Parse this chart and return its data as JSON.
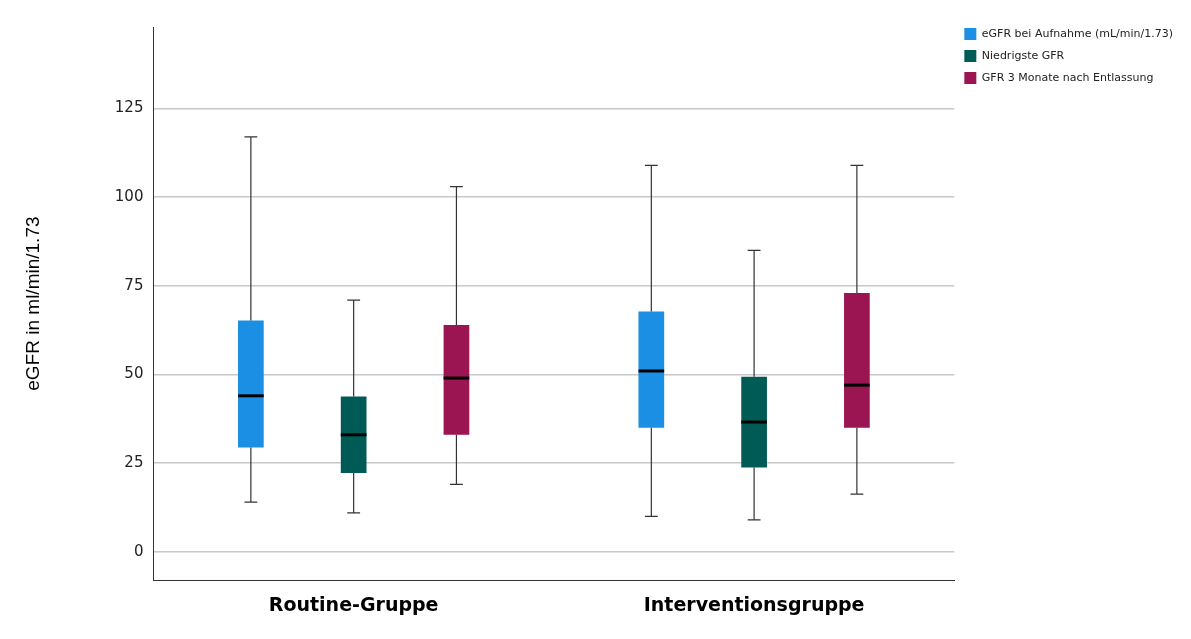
{
  "chart_data": {
    "type": "box",
    "ylabel": "eGFR in ml/min/1.73",
    "categories": [
      "Routine-Gruppe",
      "Interventionsgruppe"
    ],
    "series": [
      {
        "name": "eGFR bei Aufnahme (mL/min/1.73)",
        "color": "#1a8fe3",
        "boxes": [
          {
            "low": 14,
            "q1": 29.4,
            "median": 44,
            "q3": 65.2,
            "high": 117
          },
          {
            "low": 10,
            "q1": 35,
            "median": 51,
            "q3": 67.8,
            "high": 109
          }
        ]
      },
      {
        "name": "Niedrigste GFR",
        "color": "#005a55",
        "boxes": [
          {
            "low": 11,
            "q1": 22.2,
            "median": 33,
            "q3": 43.8,
            "high": 71
          },
          {
            "low": 9,
            "q1": 23.8,
            "median": 36.6,
            "q3": 49.4,
            "high": 85
          }
        ]
      },
      {
        "name": "GFR 3 Monate nach Entlassung",
        "color": "#9b1552",
        "boxes": [
          {
            "low": 19,
            "q1": 33,
            "median": 49,
            "q3": 64,
            "high": 103
          },
          {
            "low": 16.3,
            "q1": 35,
            "median": 47,
            "q3": 73,
            "high": 109
          }
        ]
      }
    ],
    "ylim": [
      -8,
      148
    ],
    "yticks": [
      0,
      25,
      50,
      75,
      100,
      125
    ],
    "grid": "y",
    "legend": "right"
  }
}
